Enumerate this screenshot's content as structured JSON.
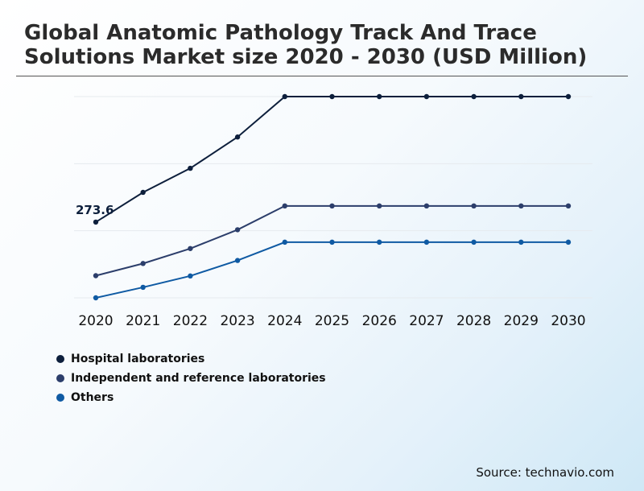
{
  "title": "Global Anatomic Pathology Track And Trace Solutions Market size 2020 - 2030 (USD Million)",
  "source": "Source: technavio.com",
  "colors": {
    "hospital": "#0d1f3c",
    "independent": "#2c3e6b",
    "others": "#0f5aa3",
    "grid": "#e6eaee"
  },
  "chart_data": {
    "type": "line",
    "title": "Global Anatomic Pathology Track And Trace Solutions Market size 2020 - 2030 (USD Million)",
    "xlabel": "",
    "ylabel": "",
    "categories": [
      "2020",
      "2021",
      "2022",
      "2023",
      "2024",
      "2025",
      "2026",
      "2027",
      "2028",
      "2029",
      "2030"
    ],
    "ylim": [
      0,
      727
    ],
    "grid": true,
    "legend_position": "bottom-left",
    "series": [
      {
        "name": "Hospital laboratories",
        "values": [
          273.6,
          381,
          468,
          581,
          727,
          727,
          727,
          727,
          727,
          727,
          727
        ]
      },
      {
        "name": "Independent and reference laboratories",
        "values": [
          80,
          124,
          178,
          246,
          332,
          332,
          332,
          332,
          332,
          332,
          332
        ]
      },
      {
        "name": "Others",
        "values": [
          0,
          38,
          79,
          135,
          201,
          201,
          201,
          201,
          201,
          201,
          201
        ]
      }
    ],
    "annotations": [
      {
        "series": 0,
        "index": 0,
        "text": "273.6"
      }
    ]
  }
}
